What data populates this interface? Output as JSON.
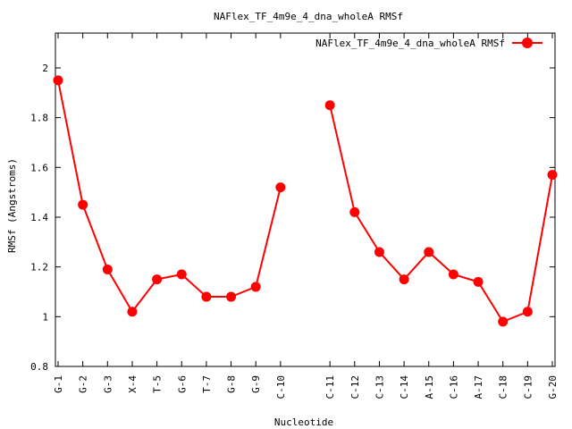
{
  "chart_data": {
    "type": "line",
    "title": "NAFlex_TF_4m9e_4_dna_wholeA RMSf",
    "xlabel": "Nucleotide",
    "ylabel": "RMSf (Angstroms)",
    "ylim": [
      0.8,
      2.14
    ],
    "yticks": [
      "0.8",
      "1",
      "1.2",
      "1.4",
      "1.6",
      "1.8",
      "2"
    ],
    "ytick_values": [
      0.8,
      1.0,
      1.2,
      1.4,
      1.6,
      1.8,
      2.0
    ],
    "categories": [
      "G-1",
      "G-2",
      "G-3",
      "X-4",
      "T-5",
      "G-6",
      "T-7",
      "G-8",
      "G-9",
      "C-10",
      "",
      "C-11",
      "C-12",
      "C-13",
      "C-14",
      "A-15",
      "C-16",
      "A-17",
      "C-18",
      "C-19",
      "G-20"
    ],
    "legend": {
      "position": "top-right"
    },
    "series": [
      {
        "name": "NAFlex_TF_4m9e_4_dna_wholeA RMSf",
        "color": "#ff0000",
        "values": [
          1.95,
          1.45,
          1.19,
          1.02,
          1.15,
          1.17,
          1.08,
          1.08,
          1.12,
          1.52,
          null,
          1.85,
          1.42,
          1.26,
          1.15,
          1.26,
          1.17,
          1.14,
          0.98,
          1.02,
          1.57
        ]
      }
    ],
    "grid": false
  }
}
